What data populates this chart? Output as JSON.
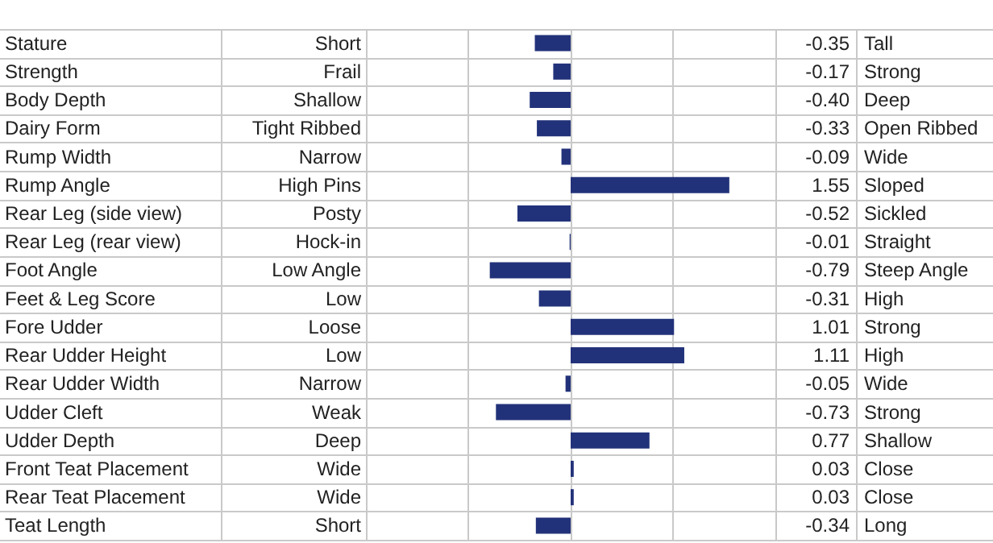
{
  "chart_data": {
    "type": "bar",
    "orientation": "horizontal",
    "categories": [
      "Stature",
      "Strength",
      "Body Depth",
      "Dairy Form",
      "Rump Width",
      "Rump Angle",
      "Rear Leg (side view)",
      "Rear Leg (rear view)",
      "Foot Angle",
      "Feet & Leg Score",
      "Fore Udder",
      "Rear Udder Height",
      "Rear Udder Width",
      "Udder Cleft",
      "Udder Depth",
      "Front Teat Placement",
      "Rear Teat Placement",
      "Teat Length"
    ],
    "values": [
      -0.35,
      -0.17,
      -0.4,
      -0.33,
      -0.09,
      1.55,
      -0.52,
      -0.01,
      -0.79,
      -0.31,
      1.01,
      1.11,
      -0.05,
      -0.73,
      0.77,
      0.03,
      0.03,
      -0.34
    ],
    "value_labels": [
      "-0.35",
      "-0.17",
      "-0.40",
      "-0.33",
      "-0.09",
      "1.55",
      "-0.52",
      "-0.01",
      "-0.79",
      "-0.31",
      "1.01",
      "1.11",
      "-0.05",
      "-0.73",
      "0.77",
      "0.03",
      "0.03",
      "-0.34"
    ],
    "color": "#22327a",
    "xlim": [
      -2,
      2
    ],
    "xticks": [
      {
        "value": -2,
        "label": null
      },
      {
        "value": -1,
        "label": null
      },
      {
        "value": 0,
        "label": null
      },
      {
        "value": 1,
        "label": null
      },
      {
        "value": 2,
        "label": null
      }
    ],
    "grid": true,
    "annotations": [
      "Short",
      "Tall",
      "Frail",
      "Strong",
      "Shallow",
      "Deep",
      "Tight Ribbed",
      "Open Ribbed",
      "Narrow",
      "Wide",
      "High Pins",
      "Sloped",
      "Posty",
      "Sickled",
      "Hock-in",
      "Straight",
      "Low Angle",
      "Steep Angle",
      "Low",
      "High",
      "Loose",
      "Strong",
      "Low",
      "High",
      "Narrow",
      "Wide",
      "Weak",
      "Strong",
      "Deep",
      "Shallow",
      "Wide",
      "Close",
      "Wide",
      "Close",
      "Short",
      "Long"
    ]
  }
}
